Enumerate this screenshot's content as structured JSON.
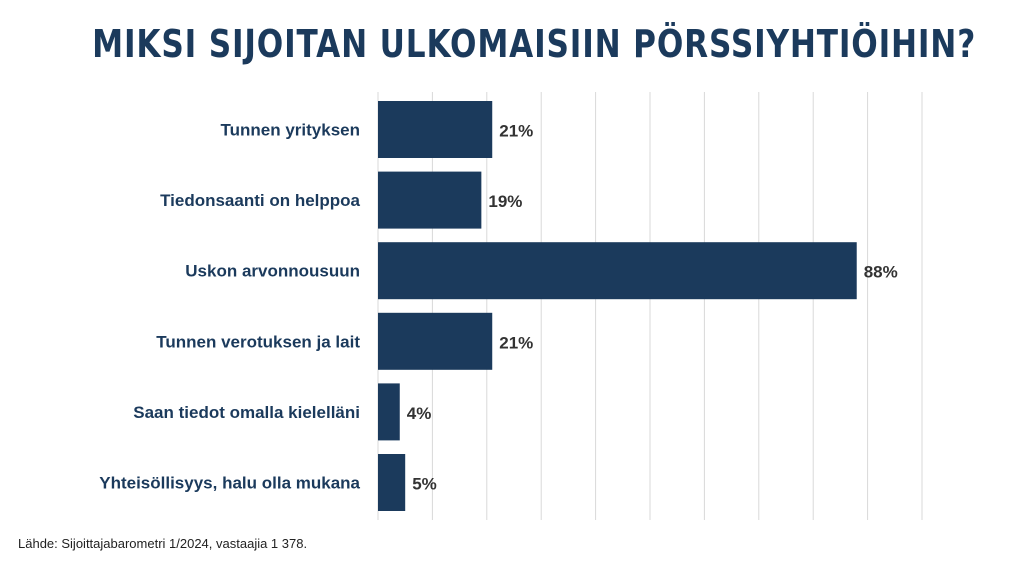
{
  "title": "MIKSI SIJOITAN ULKOMAISIIN  PÖRSSIYHTIÖIHIN?",
  "source": "Lähde: Sijoittajabarometri 1/2024, vastaajia 1 378.",
  "colors": {
    "bar": "#1b3a5c",
    "label": "#1b3a5c",
    "value": "#333333",
    "grid": "#d9d9d9"
  },
  "chart_data": {
    "type": "bar",
    "orientation": "horizontal",
    "title": "MIKSI SIJOITAN ULKOMAISIIN  PÖRSSIYHTIÖIHIN?",
    "categories": [
      "Tunnen yrityksen",
      "Tiedonsaanti on helppoa",
      "Uskon arvonnousuun",
      "Tunnen verotuksen ja lait",
      "Saan tiedot omalla kielelläni",
      "Yhteisöllisyys, halu olla mukana"
    ],
    "values": [
      21,
      19,
      88,
      21,
      4,
      5
    ],
    "value_labels": [
      "21%",
      "19%",
      "88%",
      "21%",
      "4%",
      "5%"
    ],
    "unit": "%",
    "xlim": [
      0,
      100
    ],
    "grid": true,
    "legend": false
  }
}
